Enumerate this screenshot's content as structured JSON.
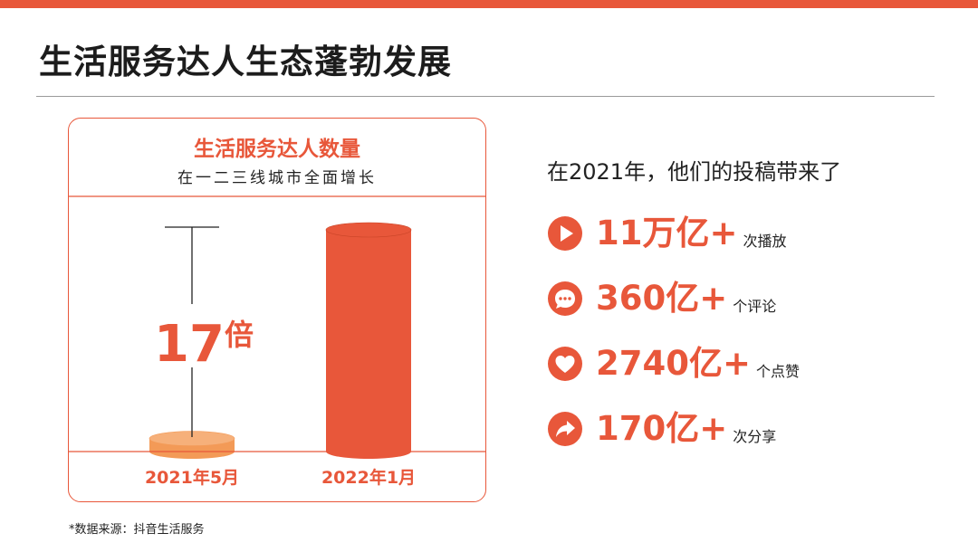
{
  "colors": {
    "accent": "#e8573a",
    "accent_light": "#f39a57",
    "accent_dark": "#c94427"
  },
  "page": {
    "title": "生活服务达人生态蓬勃发展",
    "footnote": "*数据来源：抖音生活服务"
  },
  "chart_data": {
    "type": "bar",
    "title": "生活服务达人数量",
    "subtitle": "在一二三线城市全面增长",
    "categories": [
      "2021年5月",
      "2022年1月"
    ],
    "values": [
      1,
      17
    ],
    "annotation": {
      "number": "17",
      "unit": "倍"
    }
  },
  "stats": {
    "intro": "在2021年，他们的投稿带来了",
    "items": [
      {
        "icon": "play-icon",
        "value": "11万亿+",
        "unit": "次播放"
      },
      {
        "icon": "comment-icon",
        "value": "360亿+",
        "unit": "个评论"
      },
      {
        "icon": "heart-icon",
        "value": "2740亿+",
        "unit": "个点赞"
      },
      {
        "icon": "share-icon",
        "value": "170亿+",
        "unit": "次分享"
      }
    ]
  }
}
